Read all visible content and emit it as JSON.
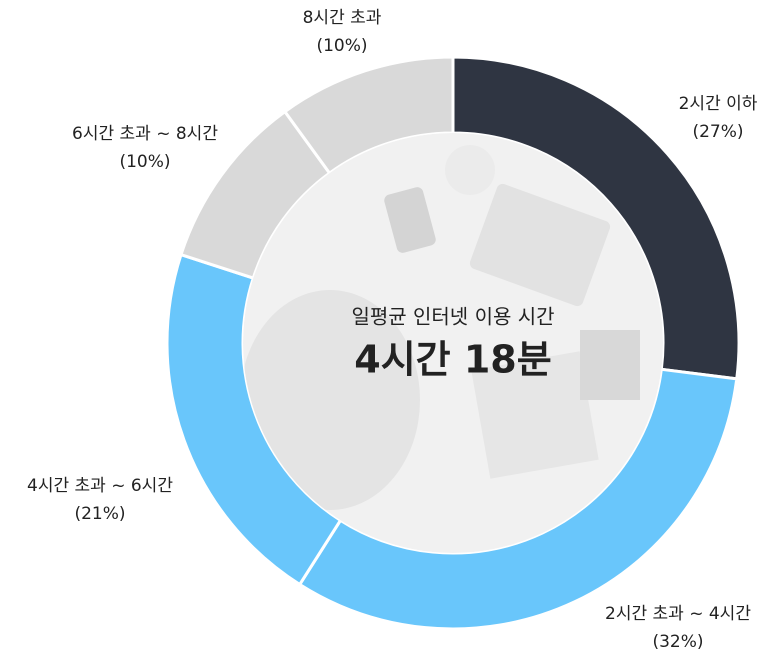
{
  "chart_data": {
    "type": "donut",
    "center_title": "일평균 인터넷 이용 시간",
    "center_value": "4시간 18분",
    "categories": [
      "2시간 이하",
      "2시간 초과 ~ 4시간",
      "4시간 초과 ~ 6시간",
      "6시간 초과 ~ 8시간",
      "8시간 초과"
    ],
    "values": [
      27,
      32,
      21,
      10,
      10
    ],
    "value_labels": [
      "(27%)",
      "(32%)",
      "(21%)",
      "(10%)",
      "(10%)"
    ],
    "colors": [
      "#2f3542",
      "#69c6fb",
      "#69c6fb",
      "#d9d9d9",
      "#d9d9d9"
    ]
  }
}
